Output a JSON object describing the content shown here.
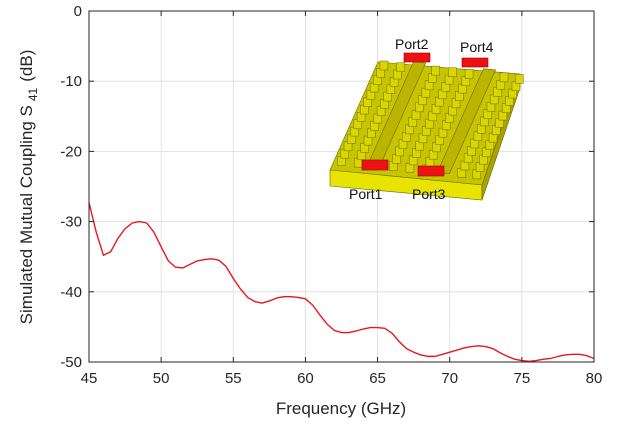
{
  "chart_data": {
    "type": "line",
    "title": "",
    "xlabel": "Frequency (GHz)",
    "ylabel_main": "Simulated Mutual Coupling S",
    "ylabel_sub": "41",
    "ylabel_unit": "(dB)",
    "xlim": [
      45,
      80
    ],
    "ylim": [
      -50,
      0
    ],
    "xticks": [
      45,
      50,
      55,
      60,
      65,
      70,
      75,
      80
    ],
    "yticks": [
      0,
      -10,
      -20,
      -30,
      -40,
      -50
    ],
    "xtick_labels": [
      "45",
      "50",
      "55",
      "60",
      "65",
      "70",
      "75",
      "80"
    ],
    "ytick_labels": [
      "0",
      "-10",
      "-20",
      "-30",
      "-40",
      "-50"
    ],
    "grid": true,
    "series": [
      {
        "color": "#e8161f",
        "x": [
          45.0,
          45.5,
          46.0,
          46.5,
          47.0,
          47.5,
          48.0,
          48.5,
          49.0,
          49.5,
          50.0,
          50.5,
          51.0,
          51.5,
          52.0,
          52.5,
          53.0,
          53.5,
          54.0,
          54.5,
          55.0,
          55.5,
          56.0,
          56.5,
          57.0,
          57.5,
          58.0,
          58.5,
          59.0,
          59.5,
          60.0,
          60.5,
          61.0,
          61.5,
          62.0,
          62.5,
          63.0,
          63.5,
          64.0,
          64.5,
          65.0,
          65.5,
          66.0,
          66.5,
          67.0,
          67.5,
          68.0,
          68.5,
          69.0,
          69.5,
          70.0,
          70.5,
          71.0,
          71.5,
          72.0,
          72.5,
          73.0,
          73.5,
          74.0,
          74.5,
          75.0,
          75.5,
          76.0,
          76.5,
          77.0,
          77.5,
          78.0,
          78.5,
          79.0,
          79.5,
          80.0
        ],
        "y": [
          -27.3,
          -31.5,
          -34.8,
          -34.3,
          -32.4,
          -31.0,
          -30.2,
          -30.0,
          -30.2,
          -31.5,
          -33.6,
          -35.6,
          -36.5,
          -36.6,
          -36.1,
          -35.6,
          -35.4,
          -35.3,
          -35.5,
          -36.4,
          -38.1,
          -39.6,
          -40.8,
          -41.4,
          -41.6,
          -41.3,
          -40.9,
          -40.7,
          -40.7,
          -40.8,
          -41.0,
          -41.9,
          -43.3,
          -44.6,
          -45.5,
          -45.8,
          -45.8,
          -45.6,
          -45.3,
          -45.1,
          -45.1,
          -45.2,
          -45.9,
          -47.1,
          -48.1,
          -48.6,
          -49.0,
          -49.2,
          -49.2,
          -48.9,
          -48.6,
          -48.3,
          -48.0,
          -47.8,
          -47.7,
          -47.8,
          -48.1,
          -48.7,
          -49.2,
          -49.6,
          -49.8,
          -49.9,
          -49.8,
          -49.6,
          -49.5,
          -49.2,
          -49.0,
          -48.9,
          -48.9,
          -49.1,
          -49.5
        ]
      }
    ],
    "inset_labels": {
      "port1": "Port1",
      "port2": "Port2",
      "port3": "Port3",
      "port4": "Port4"
    }
  }
}
